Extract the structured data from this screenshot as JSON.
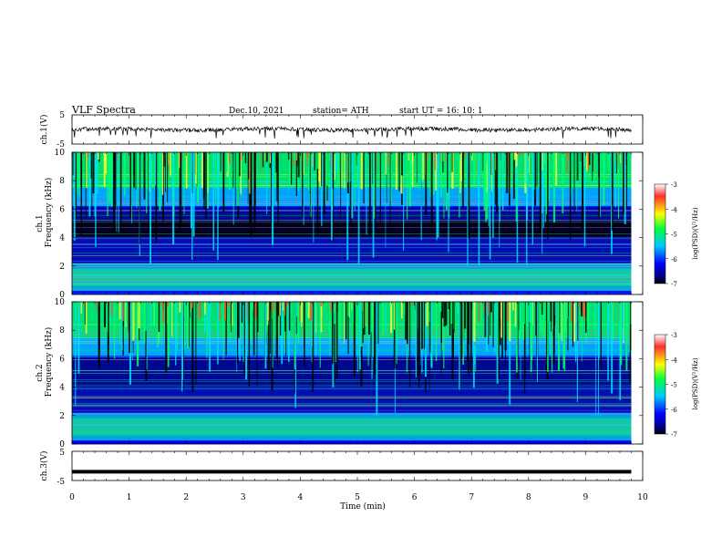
{
  "header": {
    "title": "VLF  Spectra",
    "date": "Dec.10, 2021",
    "station": "station= ATH",
    "start": "start  UT  =    16: 10: 1"
  },
  "panels": {
    "ch1_wave": {
      "ylabel": "ch.1(V)",
      "yticks": [
        "5",
        "-5"
      ]
    },
    "ch1_spec": {
      "ylabel_top": "ch.1",
      "ylabel": "Frequency  (kHz)",
      "yticks": [
        "10",
        "8",
        "6",
        "4",
        "2",
        "0"
      ]
    },
    "ch2_spec": {
      "ylabel_top": "ch.2",
      "ylabel": "Frequency  (kHz)",
      "yticks": [
        "10",
        "8",
        "6",
        "4",
        "2",
        "0"
      ]
    },
    "ch3_wave": {
      "ylabel": "ch.3(V)",
      "yticks": [
        "5",
        "-5"
      ]
    }
  },
  "xaxis": {
    "label": "Time  (min)",
    "ticks": [
      "0",
      "1",
      "2",
      "3",
      "4",
      "5",
      "6",
      "7",
      "8",
      "9",
      "10"
    ]
  },
  "colorbar": {
    "label": "log(PSD)(V²/Hz)",
    "ticks": [
      "-3",
      "-4",
      "-5",
      "-6",
      "-7"
    ]
  },
  "chart_data": [
    {
      "type": "line",
      "panel": "ch.1(V)",
      "xlabel": "Time  (min)",
      "ylabel": "ch.1(V)",
      "xlim": [
        0,
        10
      ],
      "ylim": [
        -5,
        5
      ],
      "data_extent_min": 9.8,
      "series": [
        {
          "values_approx": "noisy trace near 0 V with spikes to about -3 V"
        }
      ]
    },
    {
      "type": "heatmap",
      "panel": "ch.1",
      "xlabel": "Time  (min)",
      "ylabel": "Frequency  (kHz)",
      "xlim": [
        0,
        10
      ],
      "ylim": [
        0,
        10
      ],
      "data_extent_min": 9.8,
      "colorbar_range": [
        -7,
        -3
      ],
      "colorscale": "white-red-yellow-green-cyan-blue-black"
    },
    {
      "type": "heatmap",
      "panel": "ch.2",
      "xlabel": "Time  (min)",
      "ylabel": "Frequency  (kHz)",
      "xlim": [
        0,
        10
      ],
      "ylim": [
        0,
        10
      ],
      "data_extent_min": 9.8,
      "colorbar_range": [
        -7,
        -3
      ],
      "colorscale": "white-red-yellow-green-cyan-blue-black"
    },
    {
      "type": "line",
      "panel": "ch.3(V)",
      "xlabel": "Time  (min)",
      "ylabel": "ch.3(V)",
      "xlim": [
        0,
        10
      ],
      "ylim": [
        -5,
        5
      ],
      "data_extent_min": 9.8,
      "series": [
        {
          "values_approx": "flat at about -2 V"
        }
      ]
    }
  ]
}
